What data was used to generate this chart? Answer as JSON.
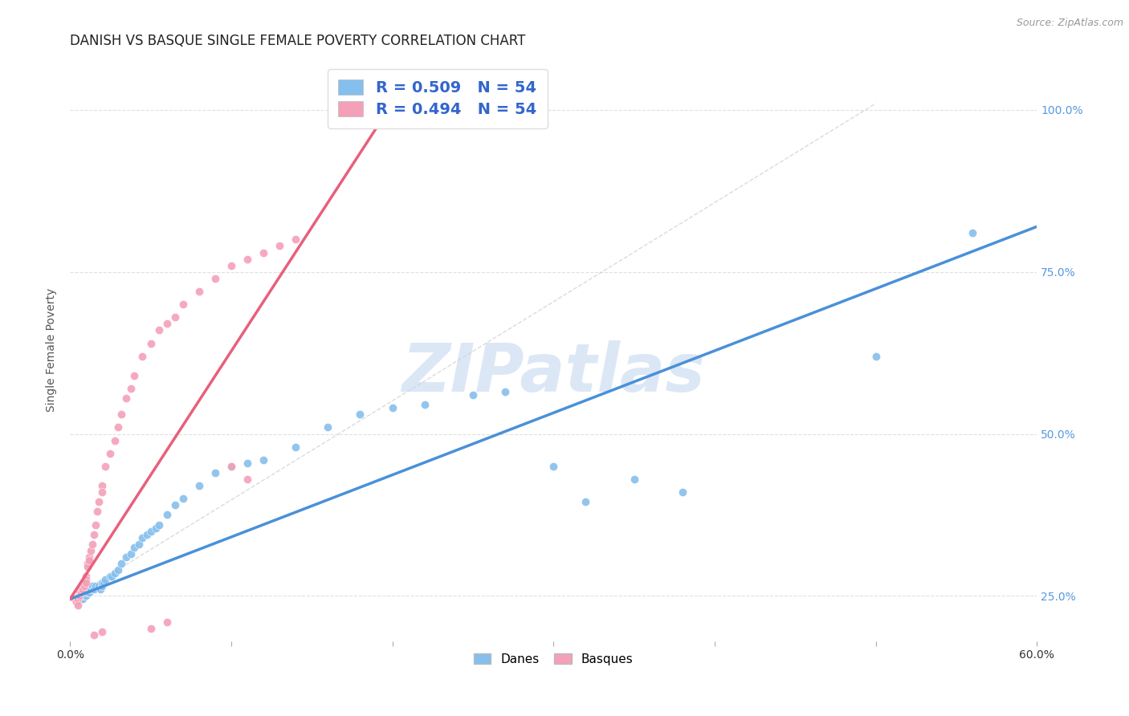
{
  "title": "DANISH VS BASQUE SINGLE FEMALE POVERTY CORRELATION CHART",
  "source": "Source: ZipAtlas.com",
  "ylabel": "Single Female Poverty",
  "xlim": [
    0.0,
    0.6
  ],
  "ylim": [
    0.18,
    1.08
  ],
  "danes_R": 0.509,
  "danes_N": 54,
  "basques_R": 0.494,
  "basques_N": 54,
  "danes_color": "#85bfed",
  "basques_color": "#f4a0b8",
  "danes_line_color": "#4a90d9",
  "basques_line_color": "#e8607a",
  "dash_color": "#cccccc",
  "watermark_color": "#c5d8f0",
  "background_color": "#ffffff",
  "grid_color": "#e0e0e0",
  "title_fontsize": 12,
  "axis_label_fontsize": 10,
  "tick_fontsize": 10,
  "legend_fontsize": 14,
  "watermark_fontsize": 60,
  "danes_x": [
    0.005,
    0.006,
    0.007,
    0.008,
    0.009,
    0.01,
    0.01,
    0.011,
    0.012,
    0.013,
    0.014,
    0.015,
    0.016,
    0.018,
    0.019,
    0.02,
    0.02,
    0.021,
    0.022,
    0.025,
    0.026,
    0.028,
    0.03,
    0.032,
    0.035,
    0.038,
    0.04,
    0.043,
    0.045,
    0.048,
    0.05,
    0.053,
    0.055,
    0.06,
    0.065,
    0.07,
    0.08,
    0.09,
    0.1,
    0.11,
    0.12,
    0.14,
    0.16,
    0.18,
    0.2,
    0.22,
    0.25,
    0.27,
    0.3,
    0.32,
    0.35,
    0.38,
    0.5,
    0.56
  ],
  "danes_y": [
    0.245,
    0.245,
    0.245,
    0.245,
    0.25,
    0.255,
    0.25,
    0.255,
    0.255,
    0.26,
    0.265,
    0.26,
    0.265,
    0.265,
    0.26,
    0.265,
    0.27,
    0.27,
    0.275,
    0.28,
    0.28,
    0.285,
    0.29,
    0.3,
    0.31,
    0.315,
    0.325,
    0.33,
    0.34,
    0.345,
    0.35,
    0.355,
    0.36,
    0.375,
    0.39,
    0.4,
    0.42,
    0.44,
    0.45,
    0.455,
    0.46,
    0.48,
    0.51,
    0.53,
    0.54,
    0.545,
    0.56,
    0.565,
    0.45,
    0.395,
    0.43,
    0.41,
    0.62,
    0.81
  ],
  "basques_x": [
    0.003,
    0.004,
    0.005,
    0.005,
    0.006,
    0.006,
    0.007,
    0.007,
    0.008,
    0.008,
    0.009,
    0.009,
    0.01,
    0.01,
    0.01,
    0.011,
    0.011,
    0.012,
    0.012,
    0.013,
    0.014,
    0.015,
    0.016,
    0.017,
    0.018,
    0.02,
    0.02,
    0.022,
    0.025,
    0.028,
    0.03,
    0.032,
    0.035,
    0.038,
    0.04,
    0.045,
    0.05,
    0.055,
    0.06,
    0.065,
    0.07,
    0.08,
    0.09,
    0.1,
    0.11,
    0.12,
    0.13,
    0.14,
    0.1,
    0.11,
    0.05,
    0.06,
    0.02,
    0.015
  ],
  "basques_y": [
    0.245,
    0.24,
    0.245,
    0.235,
    0.255,
    0.25,
    0.26,
    0.255,
    0.265,
    0.26,
    0.27,
    0.265,
    0.28,
    0.275,
    0.27,
    0.3,
    0.295,
    0.31,
    0.305,
    0.32,
    0.33,
    0.345,
    0.36,
    0.38,
    0.395,
    0.42,
    0.41,
    0.45,
    0.47,
    0.49,
    0.51,
    0.53,
    0.555,
    0.57,
    0.59,
    0.62,
    0.64,
    0.66,
    0.67,
    0.68,
    0.7,
    0.72,
    0.74,
    0.76,
    0.77,
    0.78,
    0.79,
    0.8,
    0.45,
    0.43,
    0.2,
    0.21,
    0.195,
    0.19
  ],
  "danes_line_x": [
    0.0,
    0.6
  ],
  "danes_line_y": [
    0.245,
    0.82
  ],
  "basques_line_x": [
    0.0,
    0.2
  ],
  "basques_line_y": [
    0.245,
    1.01
  ],
  "dash_line_x": [
    0.0,
    0.5
  ],
  "dash_line_y": [
    0.245,
    1.01
  ]
}
